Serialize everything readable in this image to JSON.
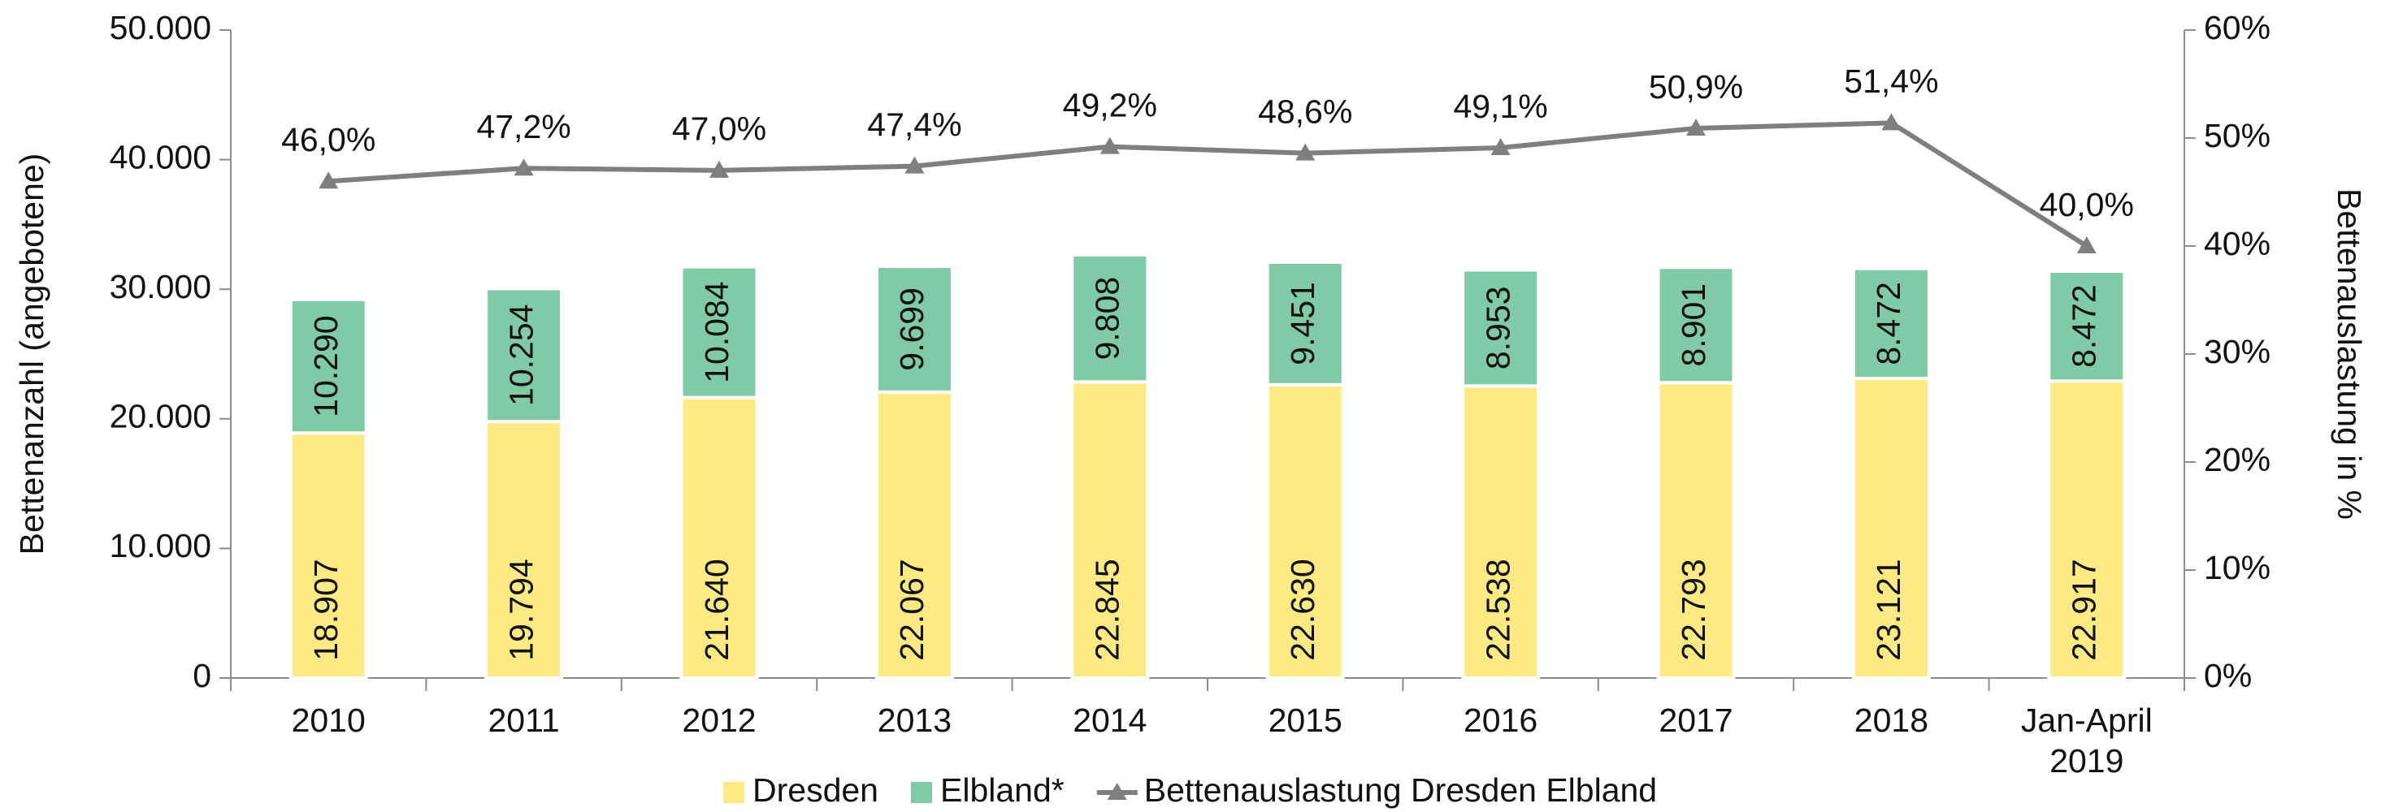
{
  "chart_data": {
    "type": "bar",
    "stacked": true,
    "y_label": "Bettenanzahl (angebotene)",
    "y2_label": "Bettenauslastung in %",
    "categories": [
      "2010",
      "2011",
      "2012",
      "2013",
      "2014",
      "2015",
      "2016",
      "2017",
      "2018",
      "Jan-April 2019"
    ],
    "series": [
      {
        "name": "Dresden",
        "type": "bar",
        "color": "#fdea85",
        "values": [
          18907,
          19794,
          21640,
          22067,
          22845,
          22630,
          22538,
          22793,
          23121,
          22917
        ],
        "value_labels": [
          "18.907",
          "19.794",
          "21.640",
          "22.067",
          "22.845",
          "22.630",
          "22.538",
          "22.793",
          "23.121",
          "22.917"
        ]
      },
      {
        "name": "Elbland*",
        "type": "bar",
        "color": "#80cba6",
        "values": [
          10290,
          10254,
          10084,
          9699,
          9808,
          9451,
          8953,
          8901,
          8472,
          8472
        ],
        "value_labels": [
          "10.290",
          "10.254",
          "10.084",
          "9.699",
          "9.808",
          "9.451",
          "8.953",
          "8.901",
          "8.472",
          "8.472"
        ]
      },
      {
        "name": "Bettenauslastung Dresden Elbland",
        "type": "line",
        "axis": "y2",
        "color": "#7f7f7f",
        "values": [
          46.0,
          47.2,
          47.0,
          47.4,
          49.2,
          48.6,
          49.1,
          50.9,
          51.4,
          40.0
        ],
        "value_labels": [
          "46,0%",
          "47,2%",
          "47,0%",
          "47,4%",
          "49,2%",
          "48,6%",
          "49,1%",
          "50,9%",
          "51,4%",
          "40,0%"
        ]
      }
    ],
    "ylim": [
      0,
      50000
    ],
    "yticks": [
      0,
      {
        "value": 10000,
        "label": "10.000"
      },
      {
        "value": 20000,
        "label": "20.000"
      },
      {
        "value": 30000,
        "label": "30.000"
      },
      {
        "value": 40000,
        "label": "40.000"
      },
      {
        "value": 50000,
        "label": "50.000"
      }
    ],
    "y2lim": [
      0,
      60
    ],
    "y2ticks": [
      {
        "value": 0,
        "label": "0%"
      },
      {
        "value": 10,
        "label": "10%"
      },
      {
        "value": 20,
        "label": "20%"
      },
      {
        "value": 30,
        "label": "30%"
      },
      {
        "value": 40,
        "label": "40%"
      },
      {
        "value": 50,
        "label": "50%"
      },
      {
        "value": 60,
        "label": "60%"
      }
    ],
    "legend": "bottom"
  }
}
